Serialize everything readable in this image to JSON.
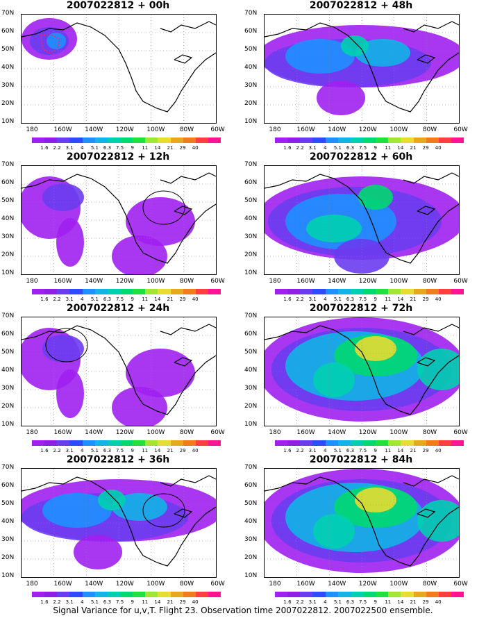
{
  "panels": [
    {
      "title": "2007022812 + 00h",
      "level": 0
    },
    {
      "title": "2007022812 + 48h",
      "level": 2
    },
    {
      "title": "2007022812 + 12h",
      "level": 1
    },
    {
      "title": "2007022812 + 60h",
      "level": 3
    },
    {
      "title": "2007022812 + 24h",
      "level": 1
    },
    {
      "title": "2007022812 + 72h",
      "level": 4
    },
    {
      "title": "2007022812 + 36h",
      "level": 2
    },
    {
      "title": "2007022812 + 84h",
      "level": 4
    }
  ],
  "lat_labels": [
    "70N",
    "60N",
    "50N",
    "40N",
    "30N",
    "20N",
    "10N"
  ],
  "lon_labels": [
    "180",
    "160W",
    "140W",
    "120W",
    "100W",
    "80W",
    "60W"
  ],
  "colorbar": {
    "colors": [
      "#a020f0",
      "#8f1ee6",
      "#6a3cf0",
      "#2f4bff",
      "#1e90ff",
      "#12b4e6",
      "#00d0b0",
      "#00d870",
      "#20e040",
      "#a0e632",
      "#e6dc32",
      "#e6a91e",
      "#f07c1e",
      "#ff3f3f",
      "#ff1493"
    ],
    "labels": [
      "1.6",
      "2.2",
      "3.1",
      "4",
      "5.1",
      "6.3",
      "7.5",
      "9",
      "11",
      "14",
      "21",
      "29",
      "40"
    ]
  },
  "caption": "Signal Variance for u,v,T. Flight 23. Observation time 2007022812. 2007022500 ensemble."
}
